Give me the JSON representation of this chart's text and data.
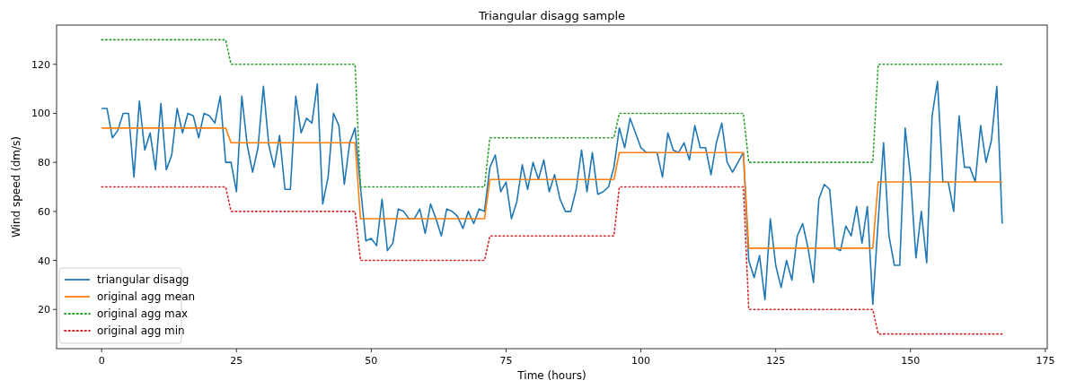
{
  "chart_data": {
    "type": "line",
    "title": "Triangular disagg sample",
    "xlabel": "Time (hours)",
    "ylabel": "Wind speed (dm/s)",
    "x": [
      0,
      1,
      2,
      3,
      4,
      5,
      6,
      7,
      8,
      9,
      10,
      11,
      12,
      13,
      14,
      15,
      16,
      17,
      18,
      19,
      20,
      21,
      22,
      23,
      24,
      25,
      26,
      27,
      28,
      29,
      30,
      31,
      32,
      33,
      34,
      35,
      36,
      37,
      38,
      39,
      40,
      41,
      42,
      43,
      44,
      45,
      46,
      47,
      48,
      49,
      50,
      51,
      52,
      53,
      54,
      55,
      56,
      57,
      58,
      59,
      60,
      61,
      62,
      63,
      64,
      65,
      66,
      67,
      68,
      69,
      70,
      71,
      72,
      73,
      74,
      75,
      76,
      77,
      78,
      79,
      80,
      81,
      82,
      83,
      84,
      85,
      86,
      87,
      88,
      89,
      90,
      91,
      92,
      93,
      94,
      95,
      96,
      97,
      98,
      99,
      100,
      101,
      102,
      103,
      104,
      105,
      106,
      107,
      108,
      109,
      110,
      111,
      112,
      113,
      114,
      115,
      116,
      117,
      118,
      119,
      120,
      121,
      122,
      123,
      124,
      125,
      126,
      127,
      128,
      129,
      130,
      131,
      132,
      133,
      134,
      135,
      136,
      137,
      138,
      139,
      140,
      141,
      142,
      143,
      144,
      145,
      146,
      147,
      148,
      149,
      150,
      151,
      152,
      153,
      154,
      155,
      156,
      157,
      158,
      159,
      160,
      161,
      162,
      163,
      164,
      165,
      166,
      167
    ],
    "series": [
      {
        "name": "triangular disagg",
        "color": "#1f77b4",
        "line_style": "solid",
        "values": [
          102,
          102,
          90,
          93,
          100,
          100,
          74,
          105,
          85,
          92,
          77,
          104,
          77,
          83,
          102,
          92,
          100,
          99,
          90,
          100,
          99,
          96,
          107,
          80,
          80,
          68,
          107,
          87,
          76,
          86,
          111,
          87,
          78,
          91,
          69,
          69,
          107,
          92,
          98,
          96,
          112,
          63,
          74,
          100,
          95,
          71,
          88,
          94,
          70,
          48,
          49,
          46,
          65,
          44,
          47,
          61,
          60,
          57,
          57,
          61,
          51,
          63,
          57,
          50,
          61,
          60,
          58,
          53,
          60,
          55,
          61,
          60,
          78,
          83,
          68,
          72,
          57,
          64,
          79,
          69,
          80,
          73,
          81,
          68,
          75,
          65,
          60,
          60,
          69,
          85,
          68,
          84,
          67,
          68,
          70,
          78,
          94,
          86,
          98,
          92,
          86,
          84,
          84,
          84,
          74,
          92,
          85,
          84,
          88,
          81,
          95,
          86,
          86,
          75,
          88,
          96,
          80,
          76,
          80,
          84,
          40,
          33,
          42,
          24,
          57,
          38,
          29,
          40,
          32,
          50,
          55,
          45,
          31,
          65,
          71,
          69,
          45,
          44,
          54,
          50,
          62,
          47,
          62,
          22,
          56,
          88,
          50,
          38,
          38,
          94,
          74,
          41,
          60,
          39,
          99,
          113,
          72,
          72,
          60,
          99,
          78,
          78,
          72,
          95,
          80,
          89,
          111,
          55
        ]
      },
      {
        "name": "original agg mean",
        "color": "#ff7f0e",
        "line_style": "solid",
        "x": [
          0,
          23,
          24,
          47,
          48,
          71,
          72,
          95,
          96,
          119,
          120,
          143,
          144,
          167
        ],
        "values": [
          94,
          94,
          88,
          88,
          57,
          57,
          73,
          73,
          84,
          84,
          45,
          45,
          72,
          72
        ]
      },
      {
        "name": "original agg max",
        "color": "#2ca02c",
        "line_style": "dotted",
        "x": [
          0,
          23,
          24,
          47,
          48,
          71,
          72,
          95,
          96,
          119,
          120,
          143,
          144,
          167
        ],
        "values": [
          130,
          130,
          120,
          120,
          70,
          70,
          90,
          90,
          100,
          100,
          80,
          80,
          120,
          120
        ]
      },
      {
        "name": "original agg min",
        "color": "#d62728",
        "line_style": "dotted",
        "x": [
          0,
          23,
          24,
          47,
          48,
          71,
          72,
          95,
          96,
          119,
          120,
          143,
          144,
          167
        ],
        "values": [
          70,
          70,
          60,
          60,
          40,
          40,
          50,
          50,
          70,
          70,
          20,
          20,
          10,
          10
        ]
      }
    ],
    "xlim": [
      -8.35,
      175.35
    ],
    "xticks": [
      0,
      25,
      50,
      75,
      100,
      125,
      150,
      175
    ],
    "ylim": [
      4,
      136
    ],
    "yticks": [
      20,
      40,
      60,
      80,
      100,
      120
    ],
    "grid": false,
    "legend": "bottom left"
  }
}
